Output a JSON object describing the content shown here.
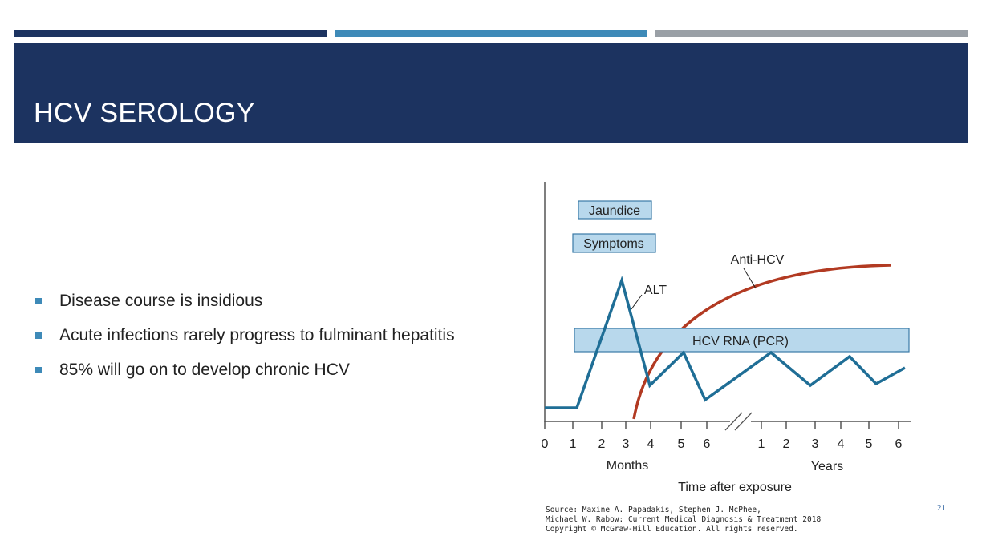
{
  "slide": {
    "title": "HCV SEROLOGY",
    "page_number": "21",
    "bullets": [
      "Disease course is insidious",
      "Acute infections rarely progress to fulminant hepatitis",
      "85% will go on to develop chronic HCV"
    ],
    "source": [
      "Source: Maxine A. Papadakis, Stephen J. McPhee,",
      "Michael W. Rabow: Current Medical Diagnosis & Treatment 2018",
      "Copyright © McGraw-Hill Education. All rights reserved."
    ]
  },
  "diagram": {
    "labels": {
      "jaundice": "Jaundice",
      "symptoms": "Symptoms",
      "anti_hcv": "Anti-HCV",
      "alt": "ALT",
      "hcv_rna": "HCV RNA (PCR)",
      "months": "Months",
      "years": "Years",
      "x_title": "Time after exposure"
    },
    "months_ticks": [
      "0",
      "1",
      "2",
      "3",
      "4",
      "5",
      "6"
    ],
    "years_ticks": [
      "1",
      "2",
      "3",
      "4",
      "5",
      "6"
    ],
    "colors": {
      "alt_line": "#1f6e96",
      "anti_hcv_curve": "#b23a22",
      "bar_fill": "#b8d8ec",
      "bar_border": "#3a7aa6",
      "axis": "#555555"
    }
  }
}
